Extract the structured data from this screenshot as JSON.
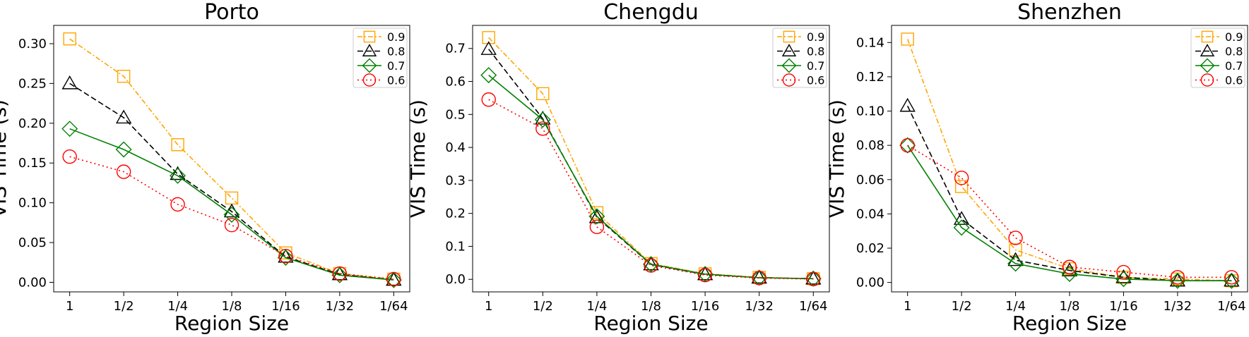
{
  "chart_data": [
    {
      "type": "line",
      "title": "Porto",
      "xlabel": "Region Size",
      "ylabel": "VIS Time (s)",
      "categories": [
        "1",
        "1/2",
        "1/4",
        "1/8",
        "1/16",
        "1/32",
        "1/64"
      ],
      "ylim": [
        -0.012,
        0.323
      ],
      "yticks": [
        "0.00",
        "0.05",
        "0.10",
        "0.15",
        "0.20",
        "0.25",
        "0.30"
      ],
      "legend_position": "top-right",
      "grid": false,
      "series": [
        {
          "name": "0.9",
          "color": "#ffa500",
          "marker": "square",
          "linestyle": "dashdot",
          "values": [
            0.306,
            0.259,
            0.173,
            0.106,
            0.037,
            0.011,
            0.004
          ]
        },
        {
          "name": "0.8",
          "color": "#000000",
          "marker": "triangle",
          "linestyle": "dashed",
          "values": [
            0.25,
            0.207,
            0.136,
            0.089,
            0.032,
            0.01,
            0.003
          ]
        },
        {
          "name": "0.7",
          "color": "#008000",
          "marker": "diamond",
          "linestyle": "solid",
          "values": [
            0.193,
            0.167,
            0.134,
            0.085,
            0.031,
            0.009,
            0.003
          ]
        },
        {
          "name": "0.6",
          "color": "#ff0000",
          "marker": "circle",
          "linestyle": "dotted",
          "values": [
            0.158,
            0.139,
            0.098,
            0.072,
            0.033,
            0.011,
            0.004
          ]
        }
      ]
    },
    {
      "type": "line",
      "title": "Chengdu",
      "xlabel": "Region Size",
      "ylabel": "VIS Time (s)",
      "categories": [
        "1",
        "1/2",
        "1/4",
        "1/8",
        "1/16",
        "1/32",
        "1/64"
      ],
      "ylim": [
        -0.038,
        0.77
      ],
      "yticks": [
        "0.0",
        "0.1",
        "0.2",
        "0.3",
        "0.4",
        "0.5",
        "0.6",
        "0.7"
      ],
      "legend_position": "top-right",
      "grid": false,
      "series": [
        {
          "name": "0.9",
          "color": "#ffa500",
          "marker": "square",
          "linestyle": "dashdot",
          "values": [
            0.733,
            0.563,
            0.202,
            0.048,
            0.017,
            0.006,
            0.002
          ]
        },
        {
          "name": "0.8",
          "color": "#000000",
          "marker": "triangle",
          "linestyle": "dashed",
          "values": [
            0.698,
            0.487,
            0.188,
            0.045,
            0.015,
            0.005,
            0.002
          ]
        },
        {
          "name": "0.7",
          "color": "#008000",
          "marker": "diamond",
          "linestyle": "solid",
          "values": [
            0.619,
            0.484,
            0.191,
            0.046,
            0.016,
            0.005,
            0.002
          ]
        },
        {
          "name": "0.6",
          "color": "#ff0000",
          "marker": "circle",
          "linestyle": "dotted",
          "values": [
            0.545,
            0.457,
            0.159,
            0.042,
            0.013,
            0.004,
            0.001
          ]
        }
      ]
    },
    {
      "type": "line",
      "title": "Shenzhen",
      "xlabel": "Region Size",
      "ylabel": "VIS Time (s)",
      "categories": [
        "1",
        "1/2",
        "1/4",
        "1/8",
        "1/16",
        "1/32",
        "1/64"
      ],
      "ylim": [
        -0.0055,
        0.15
      ],
      "yticks": [
        "0.00",
        "0.02",
        "0.04",
        "0.06",
        "0.08",
        "0.10",
        "0.12",
        "0.14"
      ],
      "legend_position": "top-right",
      "grid": false,
      "series": [
        {
          "name": "0.9",
          "color": "#ffa500",
          "marker": "square",
          "linestyle": "dashdot",
          "values": [
            0.142,
            0.056,
            0.019,
            0.008,
            0.003,
            0.002,
            0.001
          ]
        },
        {
          "name": "0.8",
          "color": "#000000",
          "marker": "triangle",
          "linestyle": "dashed",
          "values": [
            0.103,
            0.037,
            0.013,
            0.007,
            0.003,
            0.001,
            0.001
          ]
        },
        {
          "name": "0.7",
          "color": "#008000",
          "marker": "diamond",
          "linestyle": "solid",
          "values": [
            0.08,
            0.032,
            0.011,
            0.005,
            0.002,
            0.001,
            0.001
          ]
        },
        {
          "name": "0.6",
          "color": "#ff0000",
          "marker": "circle",
          "linestyle": "dotted",
          "values": [
            0.08,
            0.061,
            0.026,
            0.009,
            0.006,
            0.003,
            0.003
          ]
        }
      ]
    }
  ]
}
